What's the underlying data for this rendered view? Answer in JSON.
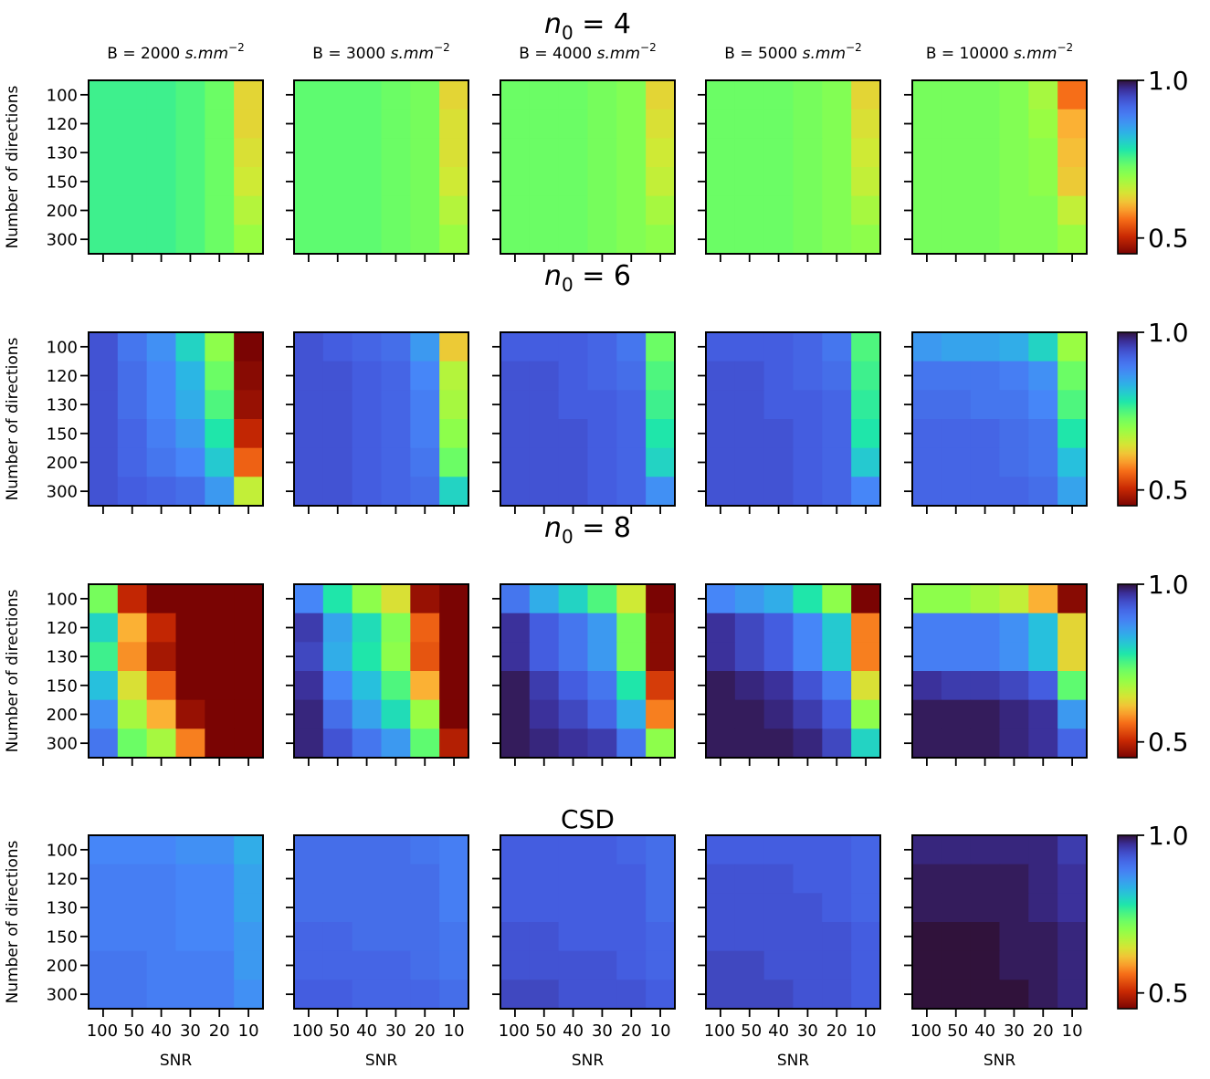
{
  "chart_data": {
    "type": "heatmap",
    "columns": [
      {
        "prefix": "B = ",
        "value": "2000",
        "unit": "s.mm",
        "exponent": "−2"
      },
      {
        "prefix": "B = ",
        "value": "3000",
        "unit": "s.mm",
        "exponent": "−2"
      },
      {
        "prefix": "B = ",
        "value": "4000",
        "unit": "s.mm",
        "exponent": "−2"
      },
      {
        "prefix": "B = ",
        "value": "5000",
        "unit": "s.mm",
        "exponent": "−2"
      },
      {
        "prefix": "B = ",
        "value": "10000",
        "unit": "s.mm",
        "exponent": "−2"
      }
    ],
    "ylabel": "Number of directions",
    "xlabel": "SNR",
    "y_categories": [
      "100",
      "120",
      "130",
      "150",
      "200",
      "300"
    ],
    "x_categories": [
      "100",
      "50",
      "40",
      "30",
      "20",
      "10"
    ],
    "colorbar": {
      "vmin": 0.45,
      "vmax": 1.0,
      "ticks": [
        "1.0",
        "0.5"
      ],
      "tick_values": [
        1.0,
        0.5
      ],
      "colormap": "turbo"
    },
    "rows": [
      {
        "title": "n0 = 4",
        "title_symbol": "n",
        "title_sub": "0",
        "title_rest": " = 4",
        "panels": [
          [
            [
              0.76,
              0.76,
              0.76,
              0.75,
              0.73,
              0.63
            ],
            [
              0.76,
              0.76,
              0.76,
              0.75,
              0.73,
              0.63
            ],
            [
              0.76,
              0.76,
              0.76,
              0.75,
              0.73,
              0.64
            ],
            [
              0.76,
              0.76,
              0.76,
              0.75,
              0.73,
              0.65
            ],
            [
              0.76,
              0.76,
              0.76,
              0.75,
              0.73,
              0.67
            ],
            [
              0.76,
              0.76,
              0.76,
              0.75,
              0.73,
              0.69
            ]
          ],
          [
            [
              0.74,
              0.74,
              0.74,
              0.73,
              0.72,
              0.63
            ],
            [
              0.74,
              0.74,
              0.74,
              0.73,
              0.72,
              0.64
            ],
            [
              0.74,
              0.74,
              0.74,
              0.73,
              0.72,
              0.64
            ],
            [
              0.74,
              0.74,
              0.74,
              0.73,
              0.72,
              0.65
            ],
            [
              0.74,
              0.74,
              0.74,
              0.73,
              0.72,
              0.67
            ],
            [
              0.74,
              0.74,
              0.74,
              0.73,
              0.72,
              0.69
            ]
          ],
          [
            [
              0.73,
              0.73,
              0.73,
              0.72,
              0.71,
              0.63
            ],
            [
              0.73,
              0.73,
              0.73,
              0.72,
              0.71,
              0.64
            ],
            [
              0.73,
              0.73,
              0.73,
              0.72,
              0.71,
              0.65
            ],
            [
              0.73,
              0.73,
              0.73,
              0.72,
              0.71,
              0.66
            ],
            [
              0.73,
              0.73,
              0.73,
              0.72,
              0.71,
              0.68
            ],
            [
              0.73,
              0.73,
              0.73,
              0.72,
              0.71,
              0.7
            ]
          ],
          [
            [
              0.73,
              0.73,
              0.73,
              0.72,
              0.71,
              0.63
            ],
            [
              0.73,
              0.73,
              0.73,
              0.72,
              0.71,
              0.64
            ],
            [
              0.73,
              0.73,
              0.73,
              0.72,
              0.71,
              0.65
            ],
            [
              0.73,
              0.73,
              0.73,
              0.72,
              0.71,
              0.66
            ],
            [
              0.73,
              0.73,
              0.73,
              0.72,
              0.71,
              0.68
            ],
            [
              0.73,
              0.73,
              0.73,
              0.72,
              0.71,
              0.7
            ]
          ],
          [
            [
              0.72,
              0.72,
              0.72,
              0.71,
              0.68,
              0.56
            ],
            [
              0.72,
              0.72,
              0.72,
              0.71,
              0.69,
              0.6
            ],
            [
              0.72,
              0.72,
              0.72,
              0.71,
              0.7,
              0.61
            ],
            [
              0.72,
              0.72,
              0.72,
              0.71,
              0.7,
              0.62
            ],
            [
              0.72,
              0.72,
              0.72,
              0.71,
              0.71,
              0.66
            ],
            [
              0.72,
              0.72,
              0.72,
              0.71,
              0.71,
              0.69
            ]
          ]
        ]
      },
      {
        "title": "n0 = 6",
        "title_symbol": "n",
        "title_sub": "0",
        "title_rest": " = 6",
        "panels": [
          [
            [
              0.94,
              0.9,
              0.87,
              0.8,
              0.7,
              0.45
            ],
            [
              0.94,
              0.91,
              0.88,
              0.83,
              0.73,
              0.46
            ],
            [
              0.94,
              0.91,
              0.88,
              0.84,
              0.75,
              0.47
            ],
            [
              0.94,
              0.92,
              0.89,
              0.86,
              0.78,
              0.5
            ],
            [
              0.94,
              0.92,
              0.9,
              0.88,
              0.81,
              0.55
            ],
            [
              0.94,
              0.93,
              0.92,
              0.91,
              0.86,
              0.66
            ]
          ],
          [
            [
              0.94,
              0.93,
              0.92,
              0.91,
              0.86,
              0.62
            ],
            [
              0.94,
              0.94,
              0.93,
              0.92,
              0.88,
              0.67
            ],
            [
              0.94,
              0.94,
              0.93,
              0.92,
              0.89,
              0.68
            ],
            [
              0.94,
              0.94,
              0.93,
              0.92,
              0.89,
              0.7
            ],
            [
              0.94,
              0.94,
              0.93,
              0.92,
              0.9,
              0.73
            ],
            [
              0.94,
              0.94,
              0.93,
              0.92,
              0.91,
              0.8
            ]
          ],
          [
            [
              0.93,
              0.93,
              0.93,
              0.92,
              0.9,
              0.73
            ],
            [
              0.94,
              0.94,
              0.93,
              0.92,
              0.91,
              0.75
            ],
            [
              0.94,
              0.94,
              0.93,
              0.93,
              0.92,
              0.76
            ],
            [
              0.94,
              0.94,
              0.94,
              0.93,
              0.92,
              0.78
            ],
            [
              0.94,
              0.94,
              0.94,
              0.93,
              0.92,
              0.8
            ],
            [
              0.94,
              0.94,
              0.94,
              0.93,
              0.92,
              0.87
            ]
          ],
          [
            [
              0.93,
              0.93,
              0.93,
              0.92,
              0.9,
              0.75
            ],
            [
              0.94,
              0.94,
              0.93,
              0.92,
              0.91,
              0.76
            ],
            [
              0.94,
              0.94,
              0.93,
              0.93,
              0.92,
              0.77
            ],
            [
              0.94,
              0.94,
              0.94,
              0.93,
              0.92,
              0.78
            ],
            [
              0.94,
              0.94,
              0.94,
              0.93,
              0.92,
              0.81
            ],
            [
              0.94,
              0.94,
              0.94,
              0.93,
              0.92,
              0.88
            ]
          ],
          [
            [
              0.86,
              0.85,
              0.85,
              0.84,
              0.8,
              0.69
            ],
            [
              0.9,
              0.9,
              0.9,
              0.89,
              0.87,
              0.73
            ],
            [
              0.91,
              0.91,
              0.9,
              0.9,
              0.88,
              0.75
            ],
            [
              0.92,
              0.92,
              0.92,
              0.91,
              0.9,
              0.78
            ],
            [
              0.92,
              0.92,
              0.92,
              0.91,
              0.9,
              0.82
            ],
            [
              0.92,
              0.92,
              0.92,
              0.92,
              0.91,
              0.85
            ]
          ]
        ]
      },
      {
        "title": "n0 = 8",
        "title_symbol": "n",
        "title_sub": "0",
        "title_rest": " = 8",
        "panels": [
          [
            [
              0.72,
              0.5,
              0.45,
              0.45,
              0.45,
              0.45
            ],
            [
              0.8,
              0.6,
              0.5,
              0.45,
              0.45,
              0.45
            ],
            [
              0.76,
              0.58,
              0.48,
              0.45,
              0.45,
              0.45
            ],
            [
              0.82,
              0.64,
              0.55,
              0.45,
              0.45,
              0.45
            ],
            [
              0.87,
              0.68,
              0.6,
              0.47,
              0.45,
              0.45
            ],
            [
              0.9,
              0.73,
              0.68,
              0.57,
              0.45,
              0.45
            ]
          ],
          [
            [
              0.88,
              0.78,
              0.7,
              0.64,
              0.47,
              0.45
            ],
            [
              0.96,
              0.85,
              0.79,
              0.71,
              0.55,
              0.45
            ],
            [
              0.95,
              0.84,
              0.78,
              0.7,
              0.54,
              0.45
            ],
            [
              0.97,
              0.88,
              0.82,
              0.75,
              0.6,
              0.45
            ],
            [
              0.98,
              0.91,
              0.85,
              0.79,
              0.69,
              0.45
            ],
            [
              0.98,
              0.94,
              0.9,
              0.86,
              0.74,
              0.49
            ]
          ],
          [
            [
              0.9,
              0.84,
              0.8,
              0.75,
              0.65,
              0.45
            ],
            [
              0.97,
              0.93,
              0.9,
              0.86,
              0.72,
              0.46
            ],
            [
              0.97,
              0.93,
              0.9,
              0.86,
              0.72,
              0.46
            ],
            [
              0.99,
              0.96,
              0.93,
              0.9,
              0.78,
              0.52
            ],
            [
              0.99,
              0.97,
              0.95,
              0.92,
              0.84,
              0.57
            ],
            [
              0.99,
              0.98,
              0.97,
              0.96,
              0.9,
              0.7
            ]
          ],
          [
            [
              0.88,
              0.86,
              0.84,
              0.78,
              0.7,
              0.45
            ],
            [
              0.97,
              0.95,
              0.93,
              0.88,
              0.81,
              0.57
            ],
            [
              0.97,
              0.95,
              0.93,
              0.88,
              0.81,
              0.57
            ],
            [
              0.99,
              0.98,
              0.97,
              0.94,
              0.89,
              0.64
            ],
            [
              0.99,
              0.99,
              0.98,
              0.96,
              0.93,
              0.7
            ],
            [
              0.99,
              0.99,
              0.99,
              0.98,
              0.95,
              0.8
            ]
          ],
          [
            [
              0.7,
              0.7,
              0.68,
              0.66,
              0.6,
              0.46
            ],
            [
              0.89,
              0.89,
              0.89,
              0.87,
              0.82,
              0.63
            ],
            [
              0.89,
              0.89,
              0.89,
              0.87,
              0.82,
              0.63
            ],
            [
              0.97,
              0.96,
              0.96,
              0.95,
              0.93,
              0.74
            ],
            [
              0.99,
              0.99,
              0.99,
              0.98,
              0.97,
              0.86
            ],
            [
              0.99,
              0.99,
              0.99,
              0.98,
              0.97,
              0.92
            ]
          ]
        ]
      },
      {
        "title": "CSD",
        "panels": [
          [
            [
              0.88,
              0.88,
              0.88,
              0.87,
              0.87,
              0.84
            ],
            [
              0.89,
              0.89,
              0.89,
              0.88,
              0.88,
              0.85
            ],
            [
              0.89,
              0.89,
              0.89,
              0.88,
              0.88,
              0.85
            ],
            [
              0.89,
              0.89,
              0.89,
              0.88,
              0.88,
              0.86
            ],
            [
              0.9,
              0.9,
              0.89,
              0.89,
              0.89,
              0.86
            ],
            [
              0.9,
              0.9,
              0.89,
              0.89,
              0.89,
              0.87
            ]
          ],
          [
            [
              0.91,
              0.91,
              0.91,
              0.91,
              0.9,
              0.89
            ],
            [
              0.91,
              0.91,
              0.91,
              0.91,
              0.91,
              0.89
            ],
            [
              0.91,
              0.91,
              0.91,
              0.91,
              0.91,
              0.89
            ],
            [
              0.92,
              0.92,
              0.91,
              0.91,
              0.91,
              0.9
            ],
            [
              0.92,
              0.92,
              0.92,
              0.92,
              0.91,
              0.9
            ],
            [
              0.93,
              0.93,
              0.92,
              0.92,
              0.92,
              0.91
            ]
          ],
          [
            [
              0.93,
              0.93,
              0.93,
              0.93,
              0.92,
              0.91
            ],
            [
              0.93,
              0.93,
              0.93,
              0.93,
              0.93,
              0.91
            ],
            [
              0.93,
              0.93,
              0.93,
              0.93,
              0.93,
              0.91
            ],
            [
              0.94,
              0.94,
              0.93,
              0.93,
              0.93,
              0.92
            ],
            [
              0.94,
              0.94,
              0.94,
              0.94,
              0.93,
              0.92
            ],
            [
              0.95,
              0.95,
              0.94,
              0.94,
              0.94,
              0.93
            ]
          ],
          [
            [
              0.93,
              0.93,
              0.93,
              0.93,
              0.93,
              0.92
            ],
            [
              0.94,
              0.94,
              0.94,
              0.93,
              0.93,
              0.92
            ],
            [
              0.94,
              0.94,
              0.94,
              0.94,
              0.93,
              0.92
            ],
            [
              0.94,
              0.94,
              0.94,
              0.94,
              0.94,
              0.93
            ],
            [
              0.95,
              0.95,
              0.94,
              0.94,
              0.94,
              0.93
            ],
            [
              0.95,
              0.95,
              0.95,
              0.94,
              0.94,
              0.93
            ]
          ],
          [
            [
              0.98,
              0.98,
              0.98,
              0.98,
              0.98,
              0.96
            ],
            [
              0.99,
              0.99,
              0.99,
              0.99,
              0.98,
              0.97
            ],
            [
              0.99,
              0.99,
              0.99,
              0.99,
              0.98,
              0.97
            ],
            [
              1.0,
              1.0,
              1.0,
              0.99,
              0.99,
              0.98
            ],
            [
              1.0,
              1.0,
              1.0,
              0.99,
              0.99,
              0.98
            ],
            [
              1.0,
              1.0,
              1.0,
              1.0,
              0.99,
              0.98
            ]
          ]
        ]
      }
    ]
  }
}
